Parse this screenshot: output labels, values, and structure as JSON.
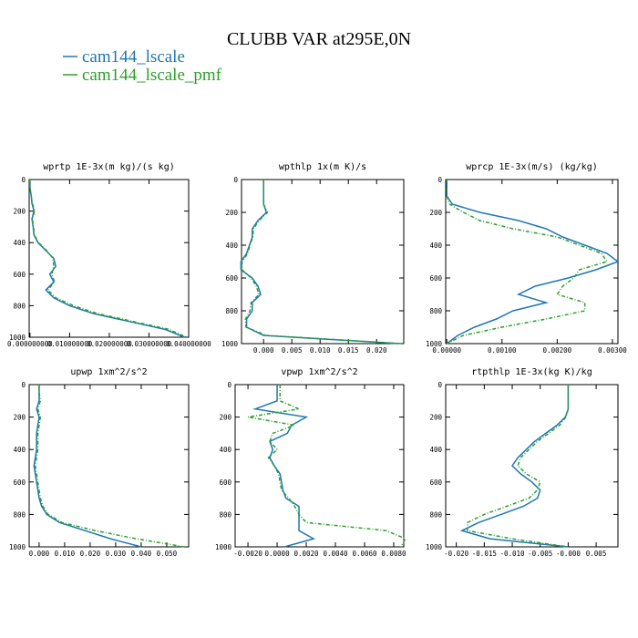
{
  "title": "CLUBB VAR at295E,0N",
  "chart_data": [
    {
      "type": "line",
      "title": "wprtp  1E-3x(m kg)/(s kg)",
      "y_inverted": true,
      "y": [
        0,
        50,
        100,
        150,
        200,
        250,
        300,
        350,
        400,
        450,
        500,
        550,
        600,
        650,
        700,
        750,
        800,
        850,
        900,
        950,
        1000
      ],
      "series": [
        {
          "name": "cam144_lscale",
          "color": "#1f77b4",
          "line_style": "solid",
          "values": [
            0,
            0,
            0.0003,
            0.0005,
            0.001,
            0.0005,
            0.0008,
            0.001,
            0.002,
            0.004,
            0.006,
            0.0065,
            0.005,
            0.006,
            0.004,
            0.006,
            0.01,
            0.016,
            0.025,
            0.034,
            0.039
          ]
        },
        {
          "name": "cam144_lscale_pmf",
          "color": "#2ca02c",
          "line_style": "dashed",
          "values": [
            0,
            0,
            0.0003,
            0.0006,
            0.0012,
            0.0006,
            0.0009,
            0.0011,
            0.0022,
            0.0042,
            0.0058,
            0.006,
            0.0055,
            0.0062,
            0.0045,
            0.0065,
            0.011,
            0.017,
            0.026,
            0.035,
            0.0395
          ]
        }
      ],
      "xlim": [
        -0.0002,
        0.04
      ],
      "ylim": [
        0,
        1000
      ],
      "xticks": [
        {
          "value": 0,
          "label": "0.000000000"
        },
        {
          "value": 0.01,
          "label": "0.010000000"
        },
        {
          "value": 0.02,
          "label": "0.020000000"
        },
        {
          "value": 0.03,
          "label": "0.030000000"
        },
        {
          "value": 0.04,
          "label": "0.040000000"
        }
      ],
      "yticks": [
        0,
        200,
        400,
        600,
        800,
        1000
      ]
    },
    {
      "type": "line",
      "title": "wpthlp  1x(m K)/s",
      "y_inverted": true,
      "y": [
        0,
        50,
        100,
        150,
        200,
        250,
        300,
        350,
        400,
        450,
        500,
        550,
        600,
        650,
        700,
        750,
        800,
        850,
        900,
        950,
        1000
      ],
      "series": [
        {
          "name": "cam144_lscale",
          "color": "#1f77b4",
          "line_style": "solid",
          "values": [
            0,
            0,
            0,
            0,
            0.0005,
            -0.001,
            -0.002,
            -0.002,
            -0.0025,
            -0.003,
            -0.004,
            -0.004,
            -0.002,
            -0.001,
            -0.0005,
            -0.002,
            -0.002,
            -0.003,
            -0.003,
            0,
            0.024
          ]
        },
        {
          "name": "cam144_lscale_pmf",
          "color": "#2ca02c",
          "line_style": "dashed",
          "values": [
            0,
            0,
            0,
            0,
            0.0007,
            -0.0008,
            -0.0018,
            -0.0019,
            -0.0024,
            -0.0028,
            -0.0038,
            -0.0038,
            -0.0022,
            -0.0013,
            -0.0008,
            -0.0022,
            -0.0024,
            -0.0032,
            -0.0031,
            0.0005,
            0.0245
          ]
        }
      ],
      "xlim": [
        -0.0039,
        0.0248
      ],
      "ylim": [
        0,
        1000
      ],
      "xticks": [
        {
          "value": 0,
          "label": "0.000"
        },
        {
          "value": 0.005,
          "label": "0.005"
        },
        {
          "value": 0.01,
          "label": "0.010"
        },
        {
          "value": 0.015,
          "label": "0.015"
        },
        {
          "value": 0.02,
          "label": "0.020"
        }
      ],
      "yticks": [
        0,
        200,
        400,
        600,
        800,
        1000
      ]
    },
    {
      "type": "line",
      "title": "wprcp  1E-3x(m/s) (kg/kg)",
      "y_inverted": true,
      "y": [
        0,
        50,
        100,
        150,
        200,
        250,
        300,
        350,
        400,
        450,
        500,
        550,
        600,
        650,
        700,
        750,
        800,
        850,
        900,
        950,
        1000
      ],
      "series": [
        {
          "name": "cam144_lscale",
          "color": "#1f77b4",
          "line_style": "solid",
          "values": [
            0,
            0,
            0,
            0.0001,
            0.0006,
            0.0013,
            0.0018,
            0.0021,
            0.0025,
            0.0029,
            0.0031,
            0.0027,
            0.0022,
            0.0016,
            0.0013,
            0.0018,
            0.0012,
            0.0009,
            0.0005,
            0.0002,
            0
          ]
        },
        {
          "name": "cam144_lscale_pmf",
          "color": "#2ca02c",
          "line_style": "dashed",
          "values": [
            0,
            0,
            0,
            5e-05,
            0.0003,
            0.0006,
            0.0012,
            0.002,
            0.0024,
            0.0028,
            0.0029,
            0.0024,
            0.0023,
            0.0021,
            0.002,
            0.0025,
            0.0025,
            0.0018,
            0.001,
            0.0003,
            0
          ]
        }
      ],
      "xlim": [
        -2e-05,
        0.0031
      ],
      "ylim": [
        0,
        1000
      ],
      "xticks": [
        {
          "value": 0,
          "label": "0.00000"
        },
        {
          "value": 0.001,
          "label": "0.00100"
        },
        {
          "value": 0.002,
          "label": "0.00200"
        },
        {
          "value": 0.003,
          "label": "0.00300"
        }
      ],
      "yticks": [
        0,
        200,
        400,
        600,
        800,
        1000
      ]
    },
    {
      "type": "line",
      "title": "upwp  1xm^2/s^2",
      "y_inverted": true,
      "y": [
        0,
        50,
        100,
        150,
        200,
        250,
        300,
        350,
        400,
        450,
        500,
        550,
        600,
        650,
        700,
        750,
        800,
        850,
        900,
        950,
        1000
      ],
      "series": [
        {
          "name": "cam144_lscale",
          "color": "#1f77b4",
          "line_style": "solid",
          "values": [
            0,
            0,
            0,
            -0.001,
            0,
            -0.0005,
            -0.001,
            -0.001,
            -0.001,
            -0.0015,
            -0.002,
            -0.0015,
            -0.001,
            -0.0005,
            0,
            0.001,
            0.003,
            0.008,
            0.018,
            0.028,
            0.04
          ]
        },
        {
          "name": "cam144_lscale_pmf",
          "color": "#2ca02c",
          "line_style": "dashed",
          "values": [
            0,
            0,
            0.0005,
            -0.0005,
            0.0005,
            0,
            -0.0005,
            -0.0005,
            -0.0005,
            -0.001,
            -0.0015,
            -0.001,
            -0.0005,
            0,
            0.0005,
            0.0015,
            0.0035,
            0.009,
            0.022,
            0.038,
            0.057
          ]
        }
      ],
      "xlim": [
        -0.0039,
        0.0586
      ],
      "ylim": [
        0,
        1000
      ],
      "xticks": [
        {
          "value": 0,
          "label": "0.000"
        },
        {
          "value": 0.01,
          "label": "0.010"
        },
        {
          "value": 0.02,
          "label": "0.020"
        },
        {
          "value": 0.03,
          "label": "0.030"
        },
        {
          "value": 0.04,
          "label": "0.040"
        },
        {
          "value": 0.05,
          "label": "0.050"
        }
      ],
      "yticks": [
        0,
        200,
        400,
        600,
        800,
        1000
      ]
    },
    {
      "type": "line",
      "title": "vpwp  1xm^2/s^2",
      "y_inverted": true,
      "y": [
        0,
        50,
        100,
        150,
        200,
        250,
        300,
        350,
        400,
        450,
        500,
        550,
        600,
        650,
        700,
        750,
        800,
        850,
        900,
        950,
        1000
      ],
      "series": [
        {
          "name": "cam144_lscale",
          "color": "#1f77b4",
          "line_style": "solid",
          "values": [
            0,
            0,
            0,
            -0.0015,
            0.002,
            0.001,
            0.0007,
            -0.0005,
            -0.0003,
            -0.0005,
            -0.0002,
            0.0002,
            0.0003,
            0.0004,
            0.0006,
            0.0015,
            0.0015,
            0.0015,
            0.0015,
            0.0025,
            0.0005
          ]
        },
        {
          "name": "cam144_lscale_pmf",
          "color": "#2ca02c",
          "line_style": "dashed",
          "values": [
            0.0002,
            0.0002,
            0.0002,
            0.0015,
            -0.002,
            0.0012,
            -0.0003,
            -0.0005,
            0,
            -0.0006,
            -0.0002,
            0.0001,
            0.0002,
            0.0003,
            0.0008,
            0.0012,
            0.0015,
            0.002,
            0.0075,
            0.0088,
            0.0085
          ]
        }
      ],
      "xlim": [
        -0.00288,
        0.00869
      ],
      "ylim": [
        0,
        1000
      ],
      "xticks": [
        {
          "value": -0.002,
          "label": "-0.0020"
        },
        {
          "value": 0,
          "label": "0.0000"
        },
        {
          "value": 0.002,
          "label": "0.0020"
        },
        {
          "value": 0.004,
          "label": "0.0040"
        },
        {
          "value": 0.006,
          "label": "0.0060"
        },
        {
          "value": 0.008,
          "label": "0.0080"
        }
      ],
      "yticks": [
        0,
        200,
        400,
        600,
        800,
        1000
      ]
    },
    {
      "type": "line",
      "title": "rtpthlp  1E-3x(kg K)/kg",
      "y_inverted": true,
      "y": [
        0,
        50,
        100,
        150,
        200,
        250,
        300,
        350,
        400,
        450,
        500,
        550,
        600,
        650,
        700,
        750,
        800,
        850,
        900,
        950,
        1000
      ],
      "series": [
        {
          "name": "cam144_lscale",
          "color": "#1f77b4",
          "line_style": "solid",
          "values": [
            0,
            0,
            0,
            0,
            -0.0005,
            -0.002,
            -0.004,
            -0.006,
            -0.0075,
            -0.009,
            -0.01,
            -0.0085,
            -0.0065,
            -0.005,
            -0.0055,
            -0.008,
            -0.012,
            -0.016,
            -0.019,
            -0.014,
            0
          ]
        },
        {
          "name": "cam144_lscale_pmf",
          "color": "#2ca02c",
          "line_style": "dashed",
          "values": [
            0,
            0,
            0,
            0,
            -0.0004,
            -0.0015,
            -0.0035,
            -0.0055,
            -0.007,
            -0.0085,
            -0.009,
            -0.0075,
            -0.005,
            -0.0055,
            -0.007,
            -0.011,
            -0.015,
            -0.018,
            -0.018,
            -0.01,
            0
          ]
        }
      ],
      "xlim": [
        -0.0219,
        0.0089
      ],
      "ylim": [
        0,
        1000
      ],
      "xticks": [
        {
          "value": -0.02,
          "label": "-0.020"
        },
        {
          "value": -0.015,
          "label": "-0.015"
        },
        {
          "value": -0.01,
          "label": "-0.010"
        },
        {
          "value": -0.005,
          "label": "-0.005"
        },
        {
          "value": 0,
          "label": "-0.000"
        },
        {
          "value": 0.005,
          "label": "0.005"
        }
      ],
      "yticks": [
        0,
        200,
        400,
        600,
        800,
        1000
      ]
    }
  ]
}
